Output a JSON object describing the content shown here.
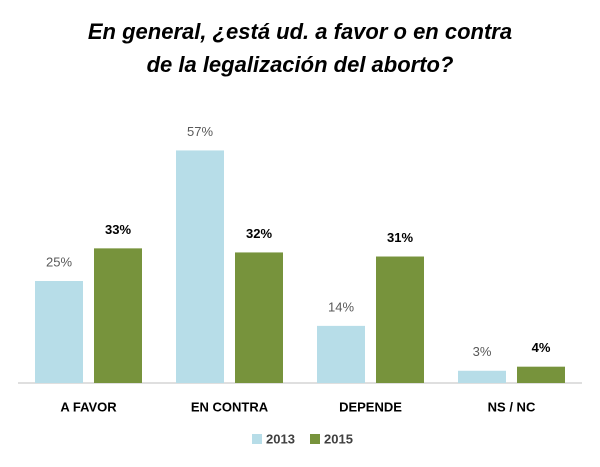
{
  "chart_data": {
    "type": "bar",
    "title": [
      "En general, ¿está ud. a favor o en contra",
      "de la legalización del aborto?"
    ],
    "categories": [
      "A FAVOR",
      "EN CONTRA",
      "DEPENDE",
      "NS / NC"
    ],
    "series": [
      {
        "name": "2013",
        "color": "#b7dde8",
        "values": [
          25,
          57,
          14,
          3
        ],
        "value_labels": [
          "25%",
          "57%",
          "14%",
          "3%"
        ]
      },
      {
        "name": "2015",
        "color": "#77933c",
        "values": [
          33,
          32,
          31,
          4
        ],
        "value_labels": [
          "33%",
          "32%",
          "31%",
          "4%"
        ]
      }
    ]
  }
}
